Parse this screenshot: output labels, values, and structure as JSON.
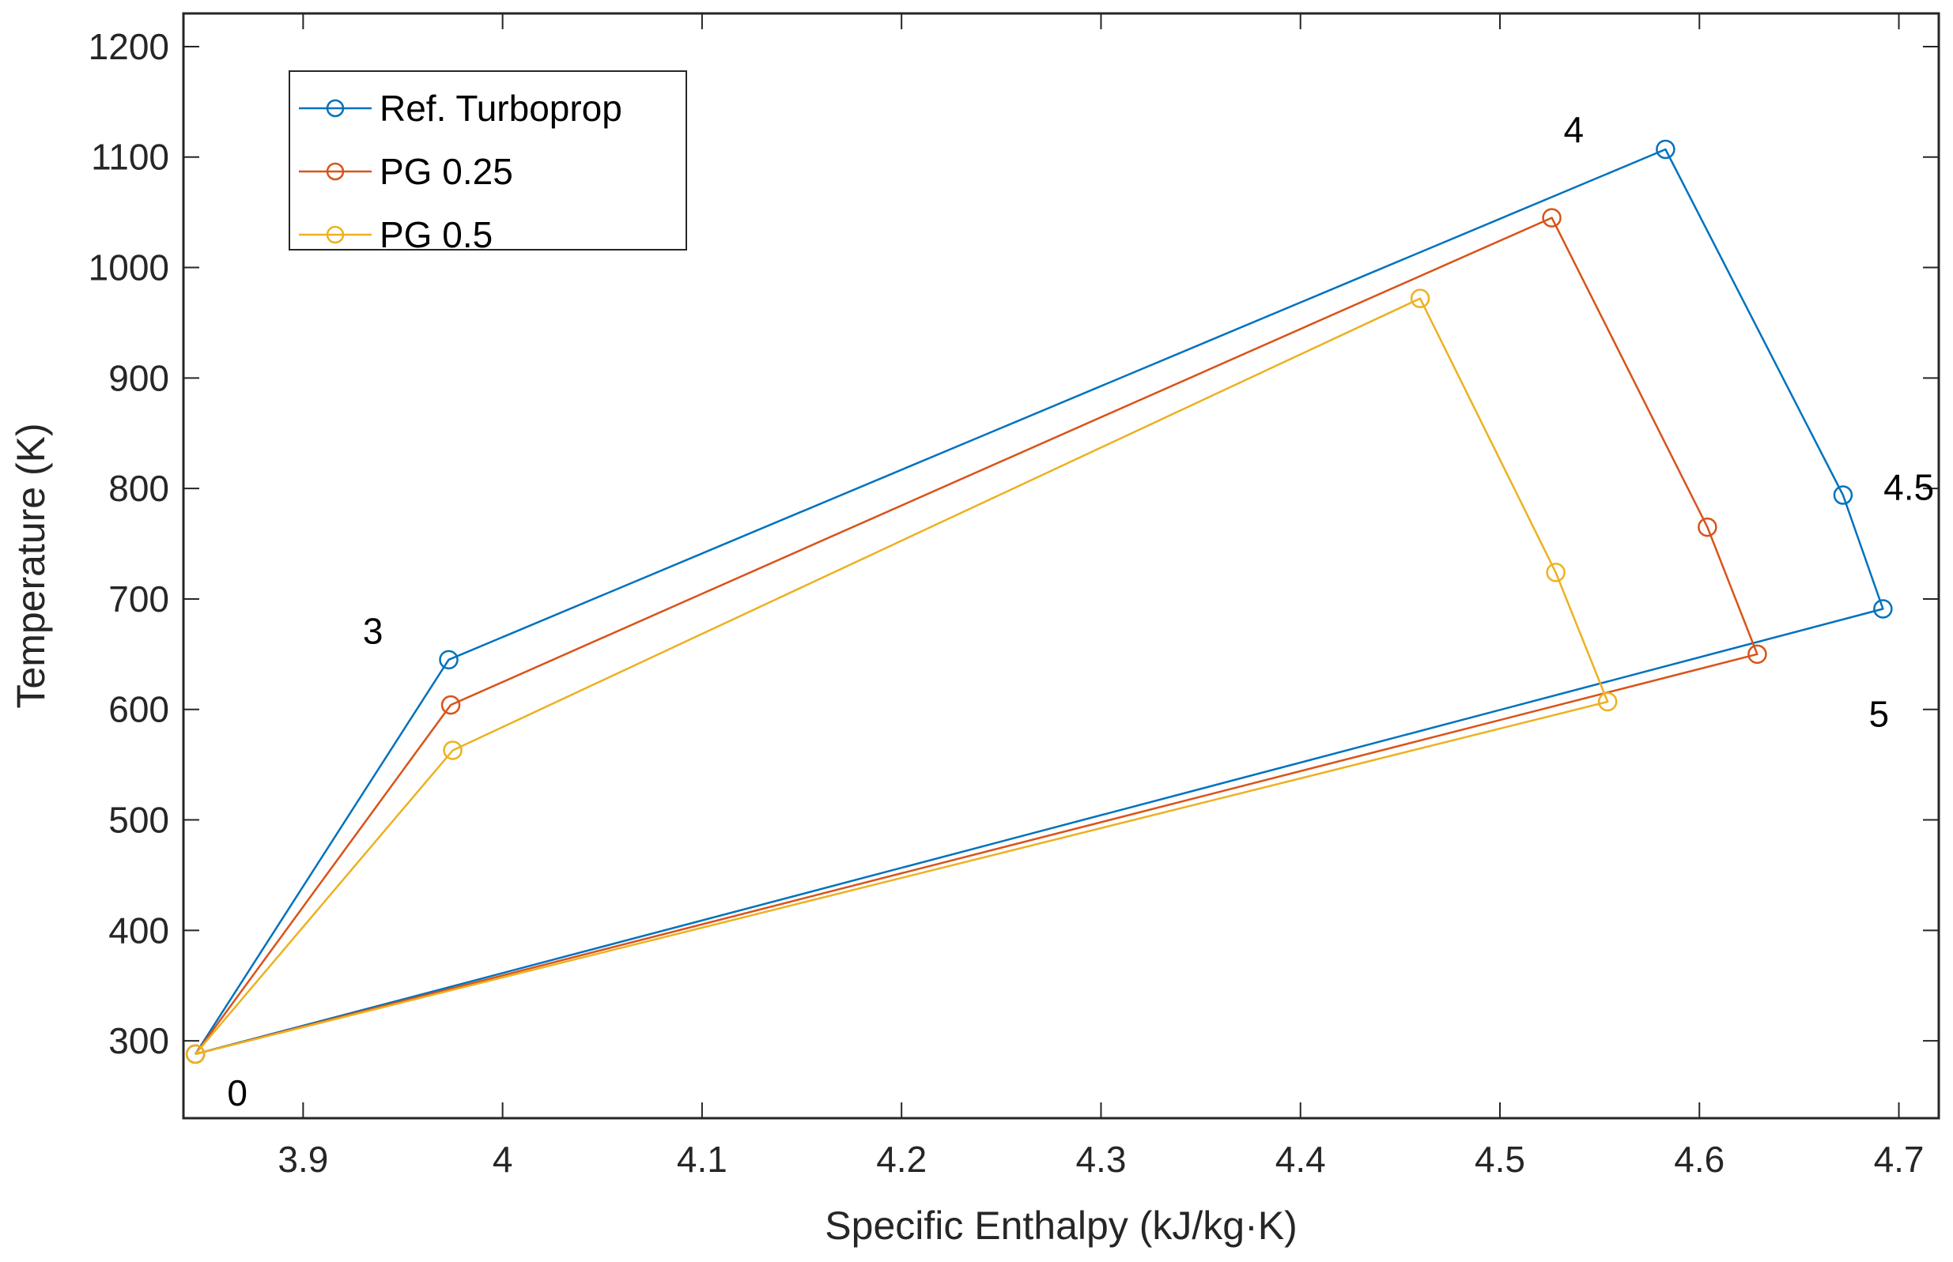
{
  "chart_data": {
    "type": "line",
    "title": "",
    "xlabel": "Specific Enthalpy (kJ/kg·K)",
    "ylabel": "Temperature (K)",
    "xlim": [
      3.84,
      4.72
    ],
    "ylim": [
      230,
      1230
    ],
    "xticks": [
      3.9,
      4,
      4.1,
      4.2,
      4.3,
      4.4,
      4.5,
      4.6,
      4.7
    ],
    "xtick_labels": [
      "3.9",
      "4",
      "4.1",
      "4.2",
      "4.3",
      "4.4",
      "4.5",
      "4.6",
      "4.7"
    ],
    "yticks": [
      300,
      400,
      500,
      600,
      700,
      800,
      900,
      1000,
      1100,
      1200
    ],
    "ytick_labels": [
      "300",
      "400",
      "500",
      "600",
      "700",
      "800",
      "900",
      "1000",
      "1100",
      "1200"
    ],
    "grid": false,
    "legend_position": "top-left",
    "series": [
      {
        "name": "Ref. Turboprop",
        "color": "#0072BD",
        "x": [
          3.846,
          3.973,
          4.583,
          4.672,
          4.692,
          3.846
        ],
        "y": [
          288,
          645,
          1107,
          794,
          691,
          288
        ]
      },
      {
        "name": "PG 0.25",
        "color": "#D95319",
        "x": [
          3.846,
          3.974,
          4.526,
          4.604,
          4.629,
          3.846
        ],
        "y": [
          288,
          604,
          1045,
          765,
          650,
          288
        ]
      },
      {
        "name": "PG 0.5",
        "color": "#EDB120",
        "x": [
          3.846,
          3.975,
          4.46,
          4.528,
          4.554,
          3.846
        ],
        "y": [
          288,
          563,
          972,
          724,
          607,
          288
        ]
      }
    ],
    "annotations": [
      {
        "text": "0",
        "x": 3.867,
        "y": 253
      },
      {
        "text": "3",
        "x": 3.935,
        "y": 671
      },
      {
        "text": "4",
        "x": 4.537,
        "y": 1125
      },
      {
        "text": "4.5",
        "x": 4.705,
        "y": 801
      },
      {
        "text": "5",
        "x": 4.69,
        "y": 596
      }
    ]
  }
}
